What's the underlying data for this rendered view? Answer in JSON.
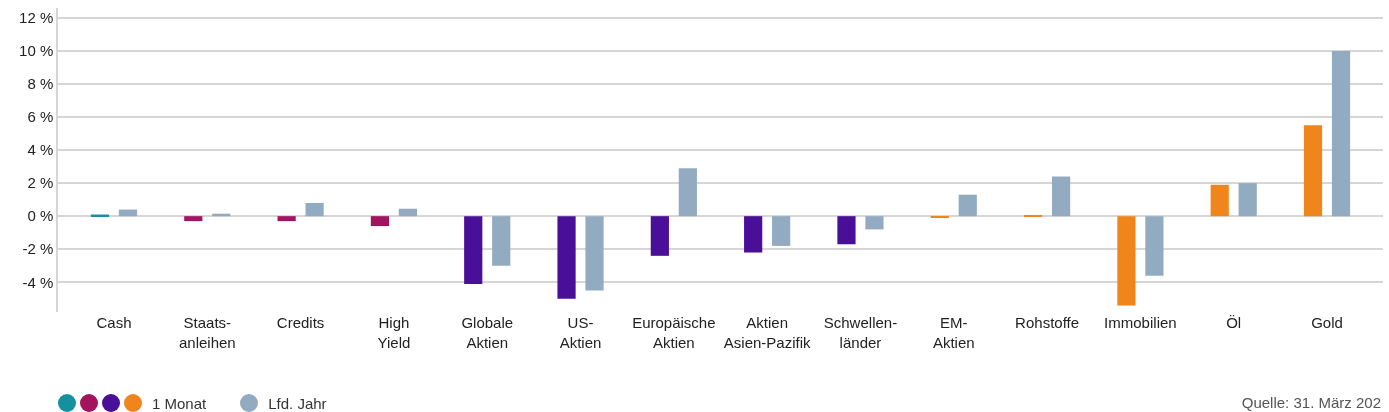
{
  "chart_data": {
    "type": "bar",
    "categories": [
      "Cash",
      "Staats-\nanleihen",
      "Credits",
      "High\nYield",
      "Globale\nAktien",
      "US-\nAktien",
      "Europäische\nAktien",
      "Aktien\nAsien-Pazifik",
      "Schwellen-\nländer",
      "EM-\nAktien",
      "Rohstoffe",
      "Immobilien",
      "Öl",
      "Gold"
    ],
    "series": [
      {
        "name": "1 Monat",
        "colors": [
          "#16909f",
          "#a3145e",
          "#a3145e",
          "#a3145e",
          "#4a0f98",
          "#4a0f98",
          "#4a0f98",
          "#4a0f98",
          "#4a0f98",
          "#f0851c",
          "#f0851c",
          "#f0851c",
          "#f0851c",
          "#f0851c"
        ],
        "values": [
          0.1,
          -0.3,
          -0.3,
          -0.6,
          -4.1,
          -5.0,
          -2.4,
          -2.2,
          -1.7,
          -0.1,
          0.05,
          -5.4,
          1.9,
          5.5
        ]
      },
      {
        "name": "Lfd. Jahr",
        "color": "#93abc0",
        "values": [
          0.4,
          0.15,
          0.8,
          0.45,
          -3.0,
          -4.5,
          2.9,
          -1.8,
          -0.8,
          1.3,
          2.4,
          -3.6,
          2.0,
          10.0
        ]
      }
    ],
    "ylim": [
      -5.8,
      12.6
    ],
    "yticks": [
      {
        "value": 12,
        "label": "12 %"
      },
      {
        "value": 10,
        "label": "10 %"
      },
      {
        "value": 8,
        "label": "8 %"
      },
      {
        "value": 6,
        "label": "6 %"
      },
      {
        "value": 4,
        "label": "4 %"
      },
      {
        "value": 2,
        "label": "2 %"
      },
      {
        "value": 0,
        "label": "0 %"
      },
      {
        "value": -2,
        "label": "-2 %"
      },
      {
        "value": -4,
        "label": "-4 %"
      }
    ],
    "grid": "y",
    "legend": "bottom left",
    "annotations": [
      "Quelle: 31. März 202"
    ]
  }
}
